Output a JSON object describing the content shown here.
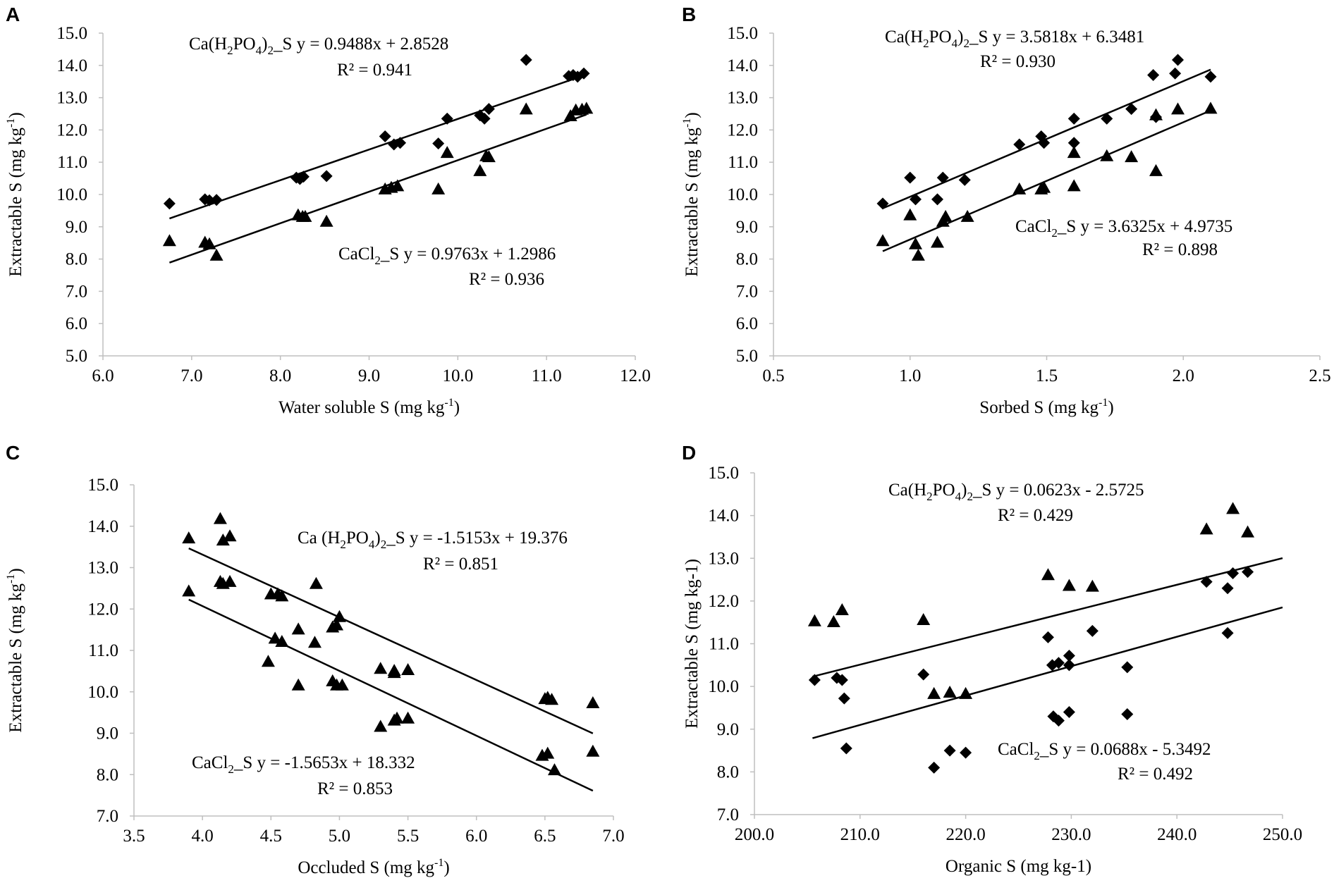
{
  "chart_data": [
    {
      "type": "scatter",
      "panel_label": "A",
      "xlabel": "Water soluble S (mg kg",
      "xlabel_sup": "-1",
      "xlabel_after": ")",
      "ylabel": "Extractable S (mg kg",
      "ylabel_sup": "-1",
      "ylabel_after": ")",
      "xlim": [
        6.0,
        12.0
      ],
      "ylim": [
        5.0,
        15.0
      ],
      "xticks": [
        "6.0",
        "7.0",
        "8.0",
        "9.0",
        "10.0",
        "11.0",
        "12.0"
      ],
      "yticks": [
        "5.0",
        "6.0",
        "7.0",
        "8.0",
        "9.0",
        "10.0",
        "11.0",
        "12.0",
        "13.0",
        "14.0",
        "15.0"
      ],
      "series": [
        {
          "name": "Ca(H2PO4)2_S",
          "marker": "diamond",
          "slope": 0.9488,
          "intercept": 2.8528,
          "fit_range": [
            6.75,
            11.45
          ],
          "eq_parts": [
            [
              "Ca(H",
              "n"
            ],
            [
              "2",
              "sub"
            ],
            [
              "PO",
              "n"
            ],
            [
              "4",
              "sub"
            ],
            [
              ")",
              "n"
            ],
            [
              "2",
              "sub"
            ],
            [
              "_S y = 0.9488x + 2.8528",
              "n"
            ]
          ],
          "r2_text": "R² = 0.941",
          "points": [
            [
              6.75,
              9.72
            ],
            [
              7.15,
              9.85
            ],
            [
              7.2,
              9.82
            ],
            [
              7.28,
              9.83
            ],
            [
              8.18,
              10.52
            ],
            [
              8.22,
              10.48
            ],
            [
              8.26,
              10.55
            ],
            [
              8.52,
              10.57
            ],
            [
              9.18,
              11.8
            ],
            [
              9.28,
              11.55
            ],
            [
              9.35,
              11.6
            ],
            [
              9.78,
              11.58
            ],
            [
              9.88,
              12.35
            ],
            [
              10.25,
              12.45
            ],
            [
              10.3,
              12.35
            ],
            [
              10.35,
              12.65
            ],
            [
              10.77,
              14.17
            ],
            [
              11.25,
              13.67
            ],
            [
              11.3,
              13.7
            ],
            [
              11.35,
              13.65
            ],
            [
              11.42,
              13.75
            ]
          ]
        },
        {
          "name": "CaCl2_S",
          "marker": "triangle",
          "slope": 0.9763,
          "intercept": 1.2986,
          "fit_range": [
            6.75,
            11.45
          ],
          "eq_parts": [
            [
              "CaCl",
              "n"
            ],
            [
              "2",
              "sub"
            ],
            [
              "_S y = 0.9763x + 1.2986",
              "n"
            ]
          ],
          "r2_text": "R² = 0.936",
          "points": [
            [
              6.75,
              8.55
            ],
            [
              7.15,
              8.5
            ],
            [
              7.2,
              8.45
            ],
            [
              7.28,
              8.1
            ],
            [
              8.2,
              9.35
            ],
            [
              8.25,
              9.3
            ],
            [
              8.28,
              9.3
            ],
            [
              8.52,
              9.15
            ],
            [
              9.18,
              10.15
            ],
            [
              9.25,
              10.2
            ],
            [
              9.32,
              10.25
            ],
            [
              9.78,
              10.15
            ],
            [
              9.88,
              11.28
            ],
            [
              10.25,
              10.72
            ],
            [
              10.32,
              11.18
            ],
            [
              10.35,
              11.15
            ],
            [
              10.77,
              12.63
            ],
            [
              11.27,
              12.42
            ],
            [
              11.33,
              12.6
            ],
            [
              11.4,
              12.62
            ],
            [
              11.45,
              12.65
            ]
          ]
        }
      ]
    },
    {
      "type": "scatter",
      "panel_label": "B",
      "xlabel": "Sorbed S (mg kg",
      "xlabel_sup": "-1",
      "xlabel_after": ")",
      "ylabel": "Extractable S (mg kg",
      "ylabel_sup": "-1",
      "ylabel_after": ")",
      "xlim": [
        0.5,
        2.5
      ],
      "ylim": [
        5.0,
        15.0
      ],
      "xticks": [
        "0.5",
        "1.0",
        "1.5",
        "2.0",
        "2.5"
      ],
      "yticks": [
        "5.0",
        "6.0",
        "7.0",
        "8.0",
        "9.0",
        "10.0",
        "11.0",
        "12.0",
        "13.0",
        "14.0",
        "15.0"
      ],
      "series": [
        {
          "name": "Ca(H2PO4)2_S",
          "marker": "diamond",
          "slope": 3.5818,
          "intercept": 6.3481,
          "fit_range": [
            0.9,
            2.1
          ],
          "eq_parts": [
            [
              "Ca(H",
              "n"
            ],
            [
              "2",
              "sub"
            ],
            [
              "PO",
              "n"
            ],
            [
              "4",
              "sub"
            ],
            [
              ")",
              "n"
            ],
            [
              "2",
              "sub"
            ],
            [
              "_S y = 3.5818x + 6.3481",
              "n"
            ]
          ],
          "r2_text": "R² = 0.930",
          "points": [
            [
              0.9,
              9.72
            ],
            [
              1.0,
              10.52
            ],
            [
              1.02,
              9.85
            ],
            [
              1.1,
              9.85
            ],
            [
              1.12,
              10.52
            ],
            [
              1.2,
              10.45
            ],
            [
              1.4,
              11.55
            ],
            [
              1.48,
              11.8
            ],
            [
              1.49,
              11.6
            ],
            [
              1.6,
              11.6
            ],
            [
              1.6,
              12.35
            ],
            [
              1.72,
              12.35
            ],
            [
              1.81,
              12.65
            ],
            [
              1.89,
              13.7
            ],
            [
              1.9,
              12.4
            ],
            [
              1.97,
              13.75
            ],
            [
              1.98,
              14.17
            ],
            [
              2.1,
              13.65
            ]
          ]
        },
        {
          "name": "CaCl2_S",
          "marker": "triangle",
          "slope": 3.6325,
          "intercept": 4.9735,
          "fit_range": [
            0.9,
            2.1
          ],
          "eq_parts": [
            [
              "CaCl",
              "n"
            ],
            [
              "2",
              "sub"
            ],
            [
              "_S y = 3.6325x + 4.9735",
              "n"
            ]
          ],
          "r2_text": "R² = 0.898",
          "points": [
            [
              0.9,
              8.55
            ],
            [
              1.0,
              9.35
            ],
            [
              1.02,
              8.45
            ],
            [
              1.03,
              8.1
            ],
            [
              1.1,
              8.5
            ],
            [
              1.12,
              9.15
            ],
            [
              1.13,
              9.3
            ],
            [
              1.21,
              9.3
            ],
            [
              1.4,
              10.15
            ],
            [
              1.48,
              10.15
            ],
            [
              1.49,
              10.2
            ],
            [
              1.6,
              10.25
            ],
            [
              1.6,
              11.28
            ],
            [
              1.72,
              11.18
            ],
            [
              1.81,
              11.15
            ],
            [
              1.9,
              12.45
            ],
            [
              1.9,
              10.72
            ],
            [
              1.98,
              12.63
            ],
            [
              2.1,
              12.65
            ]
          ]
        }
      ]
    },
    {
      "type": "scatter",
      "panel_label": "C",
      "xlabel": "Occluded S (mg kg",
      "xlabel_sup": "-1",
      "xlabel_after": ")",
      "ylabel": "Extractable S (mg kg",
      "ylabel_sup": "-1",
      "ylabel_after": ")",
      "xlim": [
        3.5,
        7.0
      ],
      "ylim": [
        7.0,
        15.0
      ],
      "xticks": [
        "3.5",
        "4.0",
        "4.5",
        "5.0",
        "5.5",
        "6.0",
        "6.5",
        "7.0"
      ],
      "yticks": [
        "7.0",
        "8.0",
        "9.0",
        "10.0",
        "11.0",
        "12.0",
        "13.0",
        "14.0",
        "15.0"
      ],
      "series": [
        {
          "name": "Ca (H2PO4)2_S",
          "marker": "triangle",
          "slope": -1.5153,
          "intercept": 19.376,
          "fit_range": [
            3.9,
            6.85
          ],
          "eq_parts": [
            [
              "Ca (H",
              "n"
            ],
            [
              "2",
              "sub"
            ],
            [
              "PO",
              "n"
            ],
            [
              "4",
              "sub"
            ],
            [
              ")",
              "n"
            ],
            [
              "2",
              "sub"
            ],
            [
              "_S y = -1.5153x + 19.376",
              "n"
            ]
          ],
          "r2_text": "R² = 0.851",
          "points": [
            [
              3.9,
              13.7
            ],
            [
              4.13,
              14.17
            ],
            [
              4.15,
              13.65
            ],
            [
              4.2,
              13.75
            ],
            [
              4.5,
              12.35
            ],
            [
              4.55,
              12.35
            ],
            [
              4.58,
              12.3
            ],
            [
              4.83,
              12.6
            ],
            [
              4.7,
              11.5
            ],
            [
              4.82,
              11.18
            ],
            [
              4.95,
              11.55
            ],
            [
              4.98,
              11.6
            ],
            [
              5.0,
              11.8
            ],
            [
              5.3,
              10.55
            ],
            [
              5.4,
              10.5
            ],
            [
              5.4,
              10.45
            ],
            [
              5.5,
              10.52
            ],
            [
              6.5,
              9.82
            ],
            [
              6.52,
              9.85
            ],
            [
              6.55,
              9.8
            ],
            [
              6.85,
              9.72
            ]
          ]
        },
        {
          "name": "CaCl2_S",
          "marker": "triangle",
          "slope": -1.5653,
          "intercept": 18.332,
          "fit_range": [
            3.9,
            6.85
          ],
          "eq_parts": [
            [
              "CaCl",
              "n"
            ],
            [
              "2",
              "sub"
            ],
            [
              "_S y = -1.5653x + 18.332",
              "n"
            ]
          ],
          "r2_text": "R² = 0.853",
          "points": [
            [
              3.9,
              12.42
            ],
            [
              4.13,
              12.65
            ],
            [
              4.15,
              12.6
            ],
            [
              4.2,
              12.65
            ],
            [
              4.48,
              10.72
            ],
            [
              4.53,
              11.28
            ],
            [
              4.58,
              11.2
            ],
            [
              4.7,
              10.15
            ],
            [
              4.95,
              10.25
            ],
            [
              4.98,
              10.15
            ],
            [
              5.02,
              10.15
            ],
            [
              5.3,
              9.15
            ],
            [
              5.4,
              9.3
            ],
            [
              5.42,
              9.35
            ],
            [
              5.5,
              9.35
            ],
            [
              6.48,
              8.45
            ],
            [
              6.52,
              8.5
            ],
            [
              6.57,
              8.1
            ],
            [
              6.85,
              8.55
            ]
          ]
        }
      ]
    },
    {
      "type": "scatter",
      "panel_label": "D",
      "xlabel": "Organic S (mg kg-1)",
      "xlabel_sup": "",
      "xlabel_after": "",
      "ylabel": "Extractable S (mg kg-1)",
      "ylabel_sup": "",
      "ylabel_after": "",
      "xlim": [
        200.0,
        250.0
      ],
      "ylim": [
        7.0,
        15.0
      ],
      "xticks": [
        "200.0",
        "210.0",
        "220.0",
        "230.0",
        "240.0",
        "250.0"
      ],
      "yticks": [
        "7.0",
        "8.0",
        "9.0",
        "10.0",
        "11.0",
        "12.0",
        "13.0",
        "14.0",
        "15.0"
      ],
      "series": [
        {
          "name": "Ca(H2PO4)2_S",
          "marker": "triangle",
          "slope": 0.0623,
          "intercept": -2.5725,
          "fit_range": [
            205.5,
            250.0
          ],
          "eq_parts": [
            [
              "Ca(H",
              "n"
            ],
            [
              "2",
              "sub"
            ],
            [
              "PO",
              "n"
            ],
            [
              "4",
              "sub"
            ],
            [
              ")",
              "n"
            ],
            [
              "2",
              "sub"
            ],
            [
              "_S y = 0.0623x - 2.5725",
              "n"
            ]
          ],
          "r2_text": "R² = 0.429",
          "points": [
            [
              205.7,
              11.52
            ],
            [
              207.5,
              11.5
            ],
            [
              208.3,
              11.78
            ],
            [
              216.0,
              11.55
            ],
            [
              227.8,
              12.6
            ],
            [
              229.8,
              12.35
            ],
            [
              232.0,
              12.33
            ],
            [
              242.8,
              13.67
            ],
            [
              245.3,
              14.15
            ],
            [
              246.7,
              13.6
            ],
            [
              217.0,
              9.82
            ],
            [
              218.5,
              9.85
            ],
            [
              220.0,
              9.82
            ]
          ]
        },
        {
          "name": "CaCl2_S",
          "marker": "diamond",
          "slope": 0.0688,
          "intercept": -5.3492,
          "fit_range": [
            205.5,
            250.0
          ],
          "eq_parts": [
            [
              "CaCl",
              "n"
            ],
            [
              "2",
              "sub"
            ],
            [
              "_S y = 0.0688x - 5.3492",
              "n"
            ]
          ],
          "r2_text": "R² = 0.492",
          "points": [
            [
              205.7,
              10.15
            ],
            [
              207.8,
              10.2
            ],
            [
              208.3,
              10.15
            ],
            [
              208.5,
              9.72
            ],
            [
              208.7,
              8.55
            ],
            [
              216.0,
              10.28
            ],
            [
              217.0,
              8.1
            ],
            [
              218.5,
              8.5
            ],
            [
              220.0,
              8.45
            ],
            [
              227.8,
              11.15
            ],
            [
              228.2,
              10.5
            ],
            [
              228.8,
              10.55
            ],
            [
              228.3,
              9.3
            ],
            [
              228.8,
              9.2
            ],
            [
              229.8,
              10.72
            ],
            [
              229.8,
              10.5
            ],
            [
              229.8,
              9.4
            ],
            [
              232.0,
              11.3
            ],
            [
              235.3,
              10.45
            ],
            [
              235.3,
              9.35
            ],
            [
              242.8,
              12.45
            ],
            [
              244.8,
              12.3
            ],
            [
              245.3,
              12.65
            ],
            [
              246.7,
              12.68
            ],
            [
              244.8,
              11.25
            ]
          ]
        }
      ]
    }
  ]
}
